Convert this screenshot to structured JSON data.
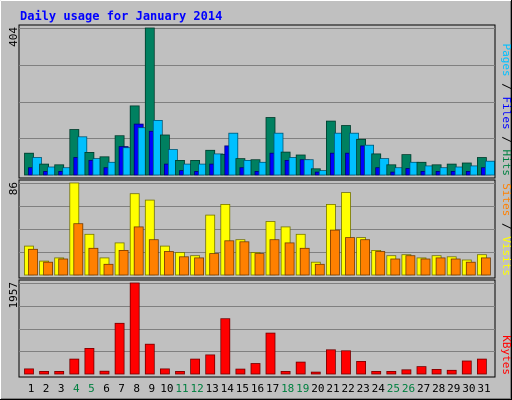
{
  "chart_data": {
    "type": "bar",
    "title": "Daily usage for January 2014",
    "days": [
      "1",
      "2",
      "3",
      "4",
      "5",
      "6",
      "7",
      "8",
      "9",
      "10",
      "11",
      "12",
      "13",
      "14",
      "15",
      "16",
      "17",
      "18",
      "19",
      "20",
      "21",
      "22",
      "23",
      "24",
      "25",
      "26",
      "27",
      "28",
      "29",
      "30",
      "31"
    ],
    "weekend_days": [
      "4",
      "5",
      "11",
      "12",
      "18",
      "19",
      "25",
      "26"
    ],
    "panels": [
      {
        "id": "hits-files-pages",
        "ymax": 404,
        "ymax_label": "404",
        "labels": [
          {
            "text": "Pages",
            "color": "#00c0ff"
          },
          {
            "text": "Files",
            "color": "#0000ff"
          },
          {
            "text": "Hits",
            "color": "#008040"
          }
        ],
        "series": [
          {
            "name": "Hits",
            "color": "#008060",
            "values": [
              60,
              30,
              28,
              125,
              62,
              50,
              108,
              190,
              404,
              110,
              40,
              40,
              68,
              57,
              45,
              42,
              158,
              63,
              55,
              17,
              148,
              136,
              98,
              58,
              28,
              56,
              35,
              28,
              30,
              33,
              48
            ]
          },
          {
            "name": "Files",
            "color": "#0000ff",
            "values": [
              20,
              10,
              10,
              48,
              40,
              20,
              78,
              140,
              120,
              30,
              12,
              10,
              30,
              80,
              20,
              10,
              60,
              40,
              42,
              8,
              60,
              60,
              80,
              20,
              8,
              18,
              10,
              10,
              10,
              10,
              20
            ]
          },
          {
            "name": "Pages",
            "color": "#00c0ff",
            "values": [
              48,
              22,
              20,
              105,
              45,
              35,
              75,
              130,
              150,
              70,
              30,
              30,
              58,
              115,
              40,
              35,
              115,
              48,
              42,
              12,
              115,
              115,
              82,
              45,
              20,
              35,
              25,
              20,
              22,
              25,
              38
            ]
          }
        ]
      },
      {
        "id": "visits-sites",
        "ymax": 86,
        "ymax_label": "86",
        "labels": [
          {
            "text": "Sites",
            "color": "#ff8000"
          },
          {
            "text": "Visits",
            "color": "#ffff00"
          }
        ],
        "series": [
          {
            "name": "Visits",
            "color": "#ffff00",
            "values": [
              27,
              13,
              16,
              86,
              38,
              16,
              30,
              76,
              70,
              27,
              21,
              18,
              56,
              66,
              33,
              21,
              50,
              45,
              38,
              12,
              66,
              77,
              35,
              23,
              18,
              19,
              16,
              18,
              17,
              14,
              19
            ]
          },
          {
            "name": "Sites",
            "color": "#ff8000",
            "values": [
              24,
              12,
              15,
              48,
              25,
              10,
              23,
              45,
              33,
              22,
              17,
              16,
              20,
              32,
              31,
              20,
              33,
              30,
              25,
              10,
              42,
              35,
              33,
              22,
              15,
              18,
              15,
              16,
              15,
              12,
              16
            ]
          }
        ]
      },
      {
        "id": "kbytes",
        "ymax": 1957,
        "ymax_label": "1957",
        "labels": [
          {
            "text": "KBytes",
            "color": "#ff0000"
          }
        ],
        "series": [
          {
            "name": "KBytes",
            "color": "#ff0000",
            "values": [
              110,
              55,
              55,
              320,
              550,
              60,
              1090,
              1957,
              640,
              110,
              55,
              320,
              410,
              1190,
              105,
              225,
              880,
              55,
              255,
              40,
              520,
              500,
              270,
              55,
              55,
              90,
              160,
              100,
              80,
              280,
              320
            ]
          }
        ]
      }
    ]
  }
}
